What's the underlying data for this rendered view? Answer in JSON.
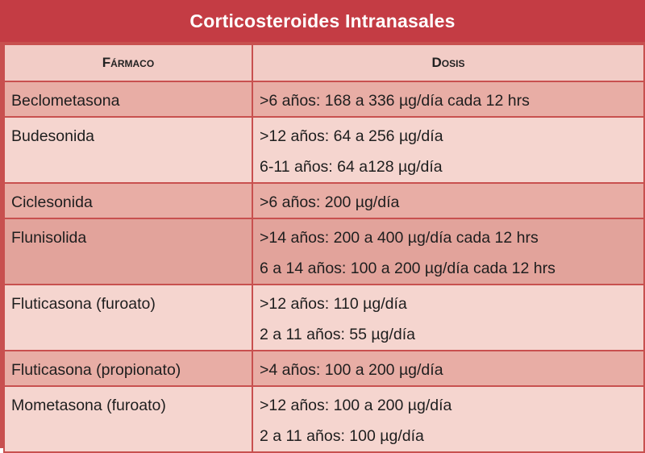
{
  "title": "Corticosteroides Intranasales",
  "headers": {
    "drug": "Fármaco",
    "dose": "Dosis"
  },
  "rows": [
    {
      "drug": "Beclometasona",
      "doses": [
        ">6 años: 168 a 336 µg/día cada 12 hrs"
      ]
    },
    {
      "drug": "Budesonida",
      "doses": [
        ">12 años: 64 a 256 µg/día",
        "6-11 años: 64 a128 µg/día"
      ]
    },
    {
      "drug": "Ciclesonida",
      "doses": [
        ">6 años: 200 µg/día"
      ]
    },
    {
      "drug": "Flunisolida",
      "doses": [
        ">14 años: 200 a 400 µg/día cada 12 hrs",
        "6 a 14 años: 100 a 200 µg/día cada 12 hrs"
      ]
    },
    {
      "drug": "Fluticasona (furoato)",
      "doses": [
        ">12 años: 110 µg/día",
        "2 a 11 años: 55 µg/día"
      ]
    },
    {
      "drug": "Fluticasona (propionato)",
      "doses": [
        ">4 años: 100 a 200 µg/día"
      ]
    },
    {
      "drug": "Mometasona (furoato)",
      "doses": [
        ">12 años: 100 a 200 µg/día",
        "2 a 11 años: 100 µg/día"
      ]
    }
  ],
  "colors": {
    "title_background": "#c43c44",
    "border": "#c8504f",
    "header_background": "#f2ccc6",
    "row_dark": "#e8ada5",
    "row_light": "#f5d5cf"
  }
}
